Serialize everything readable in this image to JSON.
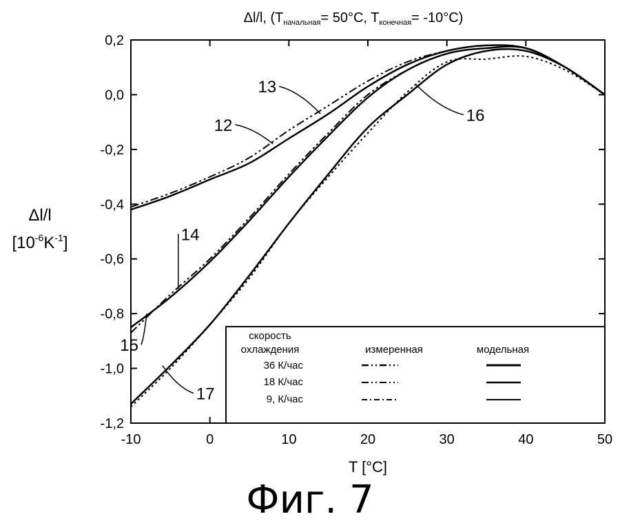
{
  "chart_data": {
    "type": "line",
    "title": {
      "main": "Δl/l, (T",
      "sub_start": "начальная",
      "mid": "= 50°C, T",
      "sub_end": "конечная",
      "end": "= -10°C)"
    },
    "xlabel": "T [°C]",
    "ylabel": {
      "line1": "Δl/l",
      "line2_base": "[10",
      "line2_sup1": "-6",
      "line2_mid": "K",
      "line2_sup2": "-1",
      "line2_end": "]"
    },
    "xlim": [
      -10,
      50
    ],
    "ylim": [
      -1.2,
      0.2
    ],
    "x_ticks": [
      -10,
      0,
      10,
      20,
      30,
      40,
      50
    ],
    "x_tick_labels": [
      "-10",
      "0",
      "10",
      "20",
      "30",
      "40",
      "50"
    ],
    "y_ticks": [
      0.2,
      0.0,
      -0.2,
      -0.4,
      -0.6,
      -0.8,
      -1.0,
      -1.2
    ],
    "y_tick_labels": [
      "0,2",
      "0,0",
      "-0,2",
      "-0,4",
      "-0,6",
      "-0,8",
      "-1,0",
      "-1,2"
    ],
    "grid": false,
    "legend": {
      "placement": "bottom-right",
      "header_rate": [
        "скорость",
        "охлаждения"
      ],
      "header_measured": "измеренная",
      "header_model": "модельная",
      "rows": [
        "36 К/час",
        "18 К/час",
        "9,  К/час"
      ]
    },
    "series": [
      {
        "label": "12",
        "style": "solid",
        "x": [
          -10,
          -5,
          0,
          5,
          10,
          15,
          20,
          25,
          30,
          35,
          40,
          45,
          50
        ],
        "y": [
          -0.42,
          -0.37,
          -0.31,
          -0.25,
          -0.16,
          -0.07,
          0.03,
          0.11,
          0.16,
          0.18,
          0.17,
          0.1,
          0.0
        ]
      },
      {
        "label": "13",
        "style": "dash-dot",
        "x": [
          -10,
          -5,
          0,
          5,
          10,
          15,
          20,
          25,
          30,
          35,
          40,
          45,
          50
        ],
        "y": [
          -0.41,
          -0.36,
          -0.3,
          -0.23,
          -0.13,
          -0.04,
          0.05,
          0.12,
          0.16,
          0.18,
          0.17,
          0.1,
          0.0
        ]
      },
      {
        "label": "14",
        "style": "solid",
        "x": [
          -10,
          -5,
          0,
          5,
          10,
          15,
          20,
          25,
          30,
          35,
          40,
          45,
          50
        ],
        "y": [
          -0.85,
          -0.74,
          -0.61,
          -0.46,
          -0.3,
          -0.15,
          -0.01,
          0.09,
          0.15,
          0.17,
          0.17,
          0.1,
          0.0
        ]
      },
      {
        "label": "15",
        "style": "dash-dot",
        "x": [
          -10,
          -5,
          0,
          5,
          10,
          15,
          20,
          25,
          30,
          35,
          40,
          45,
          50
        ],
        "y": [
          -0.87,
          -0.73,
          -0.6,
          -0.45,
          -0.29,
          -0.14,
          0.0,
          0.09,
          0.15,
          0.17,
          0.17,
          0.1,
          0.0
        ]
      },
      {
        "label": "16",
        "style": "solid",
        "x": [
          -10,
          -5,
          0,
          5,
          10,
          15,
          20,
          25,
          30,
          35,
          40,
          45,
          50
        ],
        "y": [
          -1.13,
          -0.99,
          -0.84,
          -0.66,
          -0.47,
          -0.29,
          -0.12,
          0.0,
          0.11,
          0.16,
          0.16,
          0.1,
          0.0
        ]
      },
      {
        "label": "17",
        "style": "dotted",
        "x": [
          -10,
          -5,
          0,
          5,
          10,
          15,
          20,
          25,
          30,
          35,
          40,
          45,
          50
        ],
        "y": [
          -1.14,
          -1.0,
          -0.84,
          -0.67,
          -0.47,
          -0.3,
          -0.14,
          0.01,
          0.12,
          0.13,
          0.14,
          0.09,
          0.0
        ]
      }
    ],
    "annotations": [
      {
        "text": "12",
        "at_x": 8,
        "at_y": -0.18
      },
      {
        "text": "13",
        "at_x": 14,
        "at_y": -0.07
      },
      {
        "text": "14",
        "at_x": -4,
        "at_y": -0.71
      },
      {
        "text": "15",
        "at_x": -8,
        "at_y": -0.8
      },
      {
        "text": "16",
        "at_x": 26,
        "at_y": 0.04
      },
      {
        "text": "17",
        "at_x": -6,
        "at_y": -0.99
      }
    ]
  },
  "figure_caption": "Фиг. 7"
}
